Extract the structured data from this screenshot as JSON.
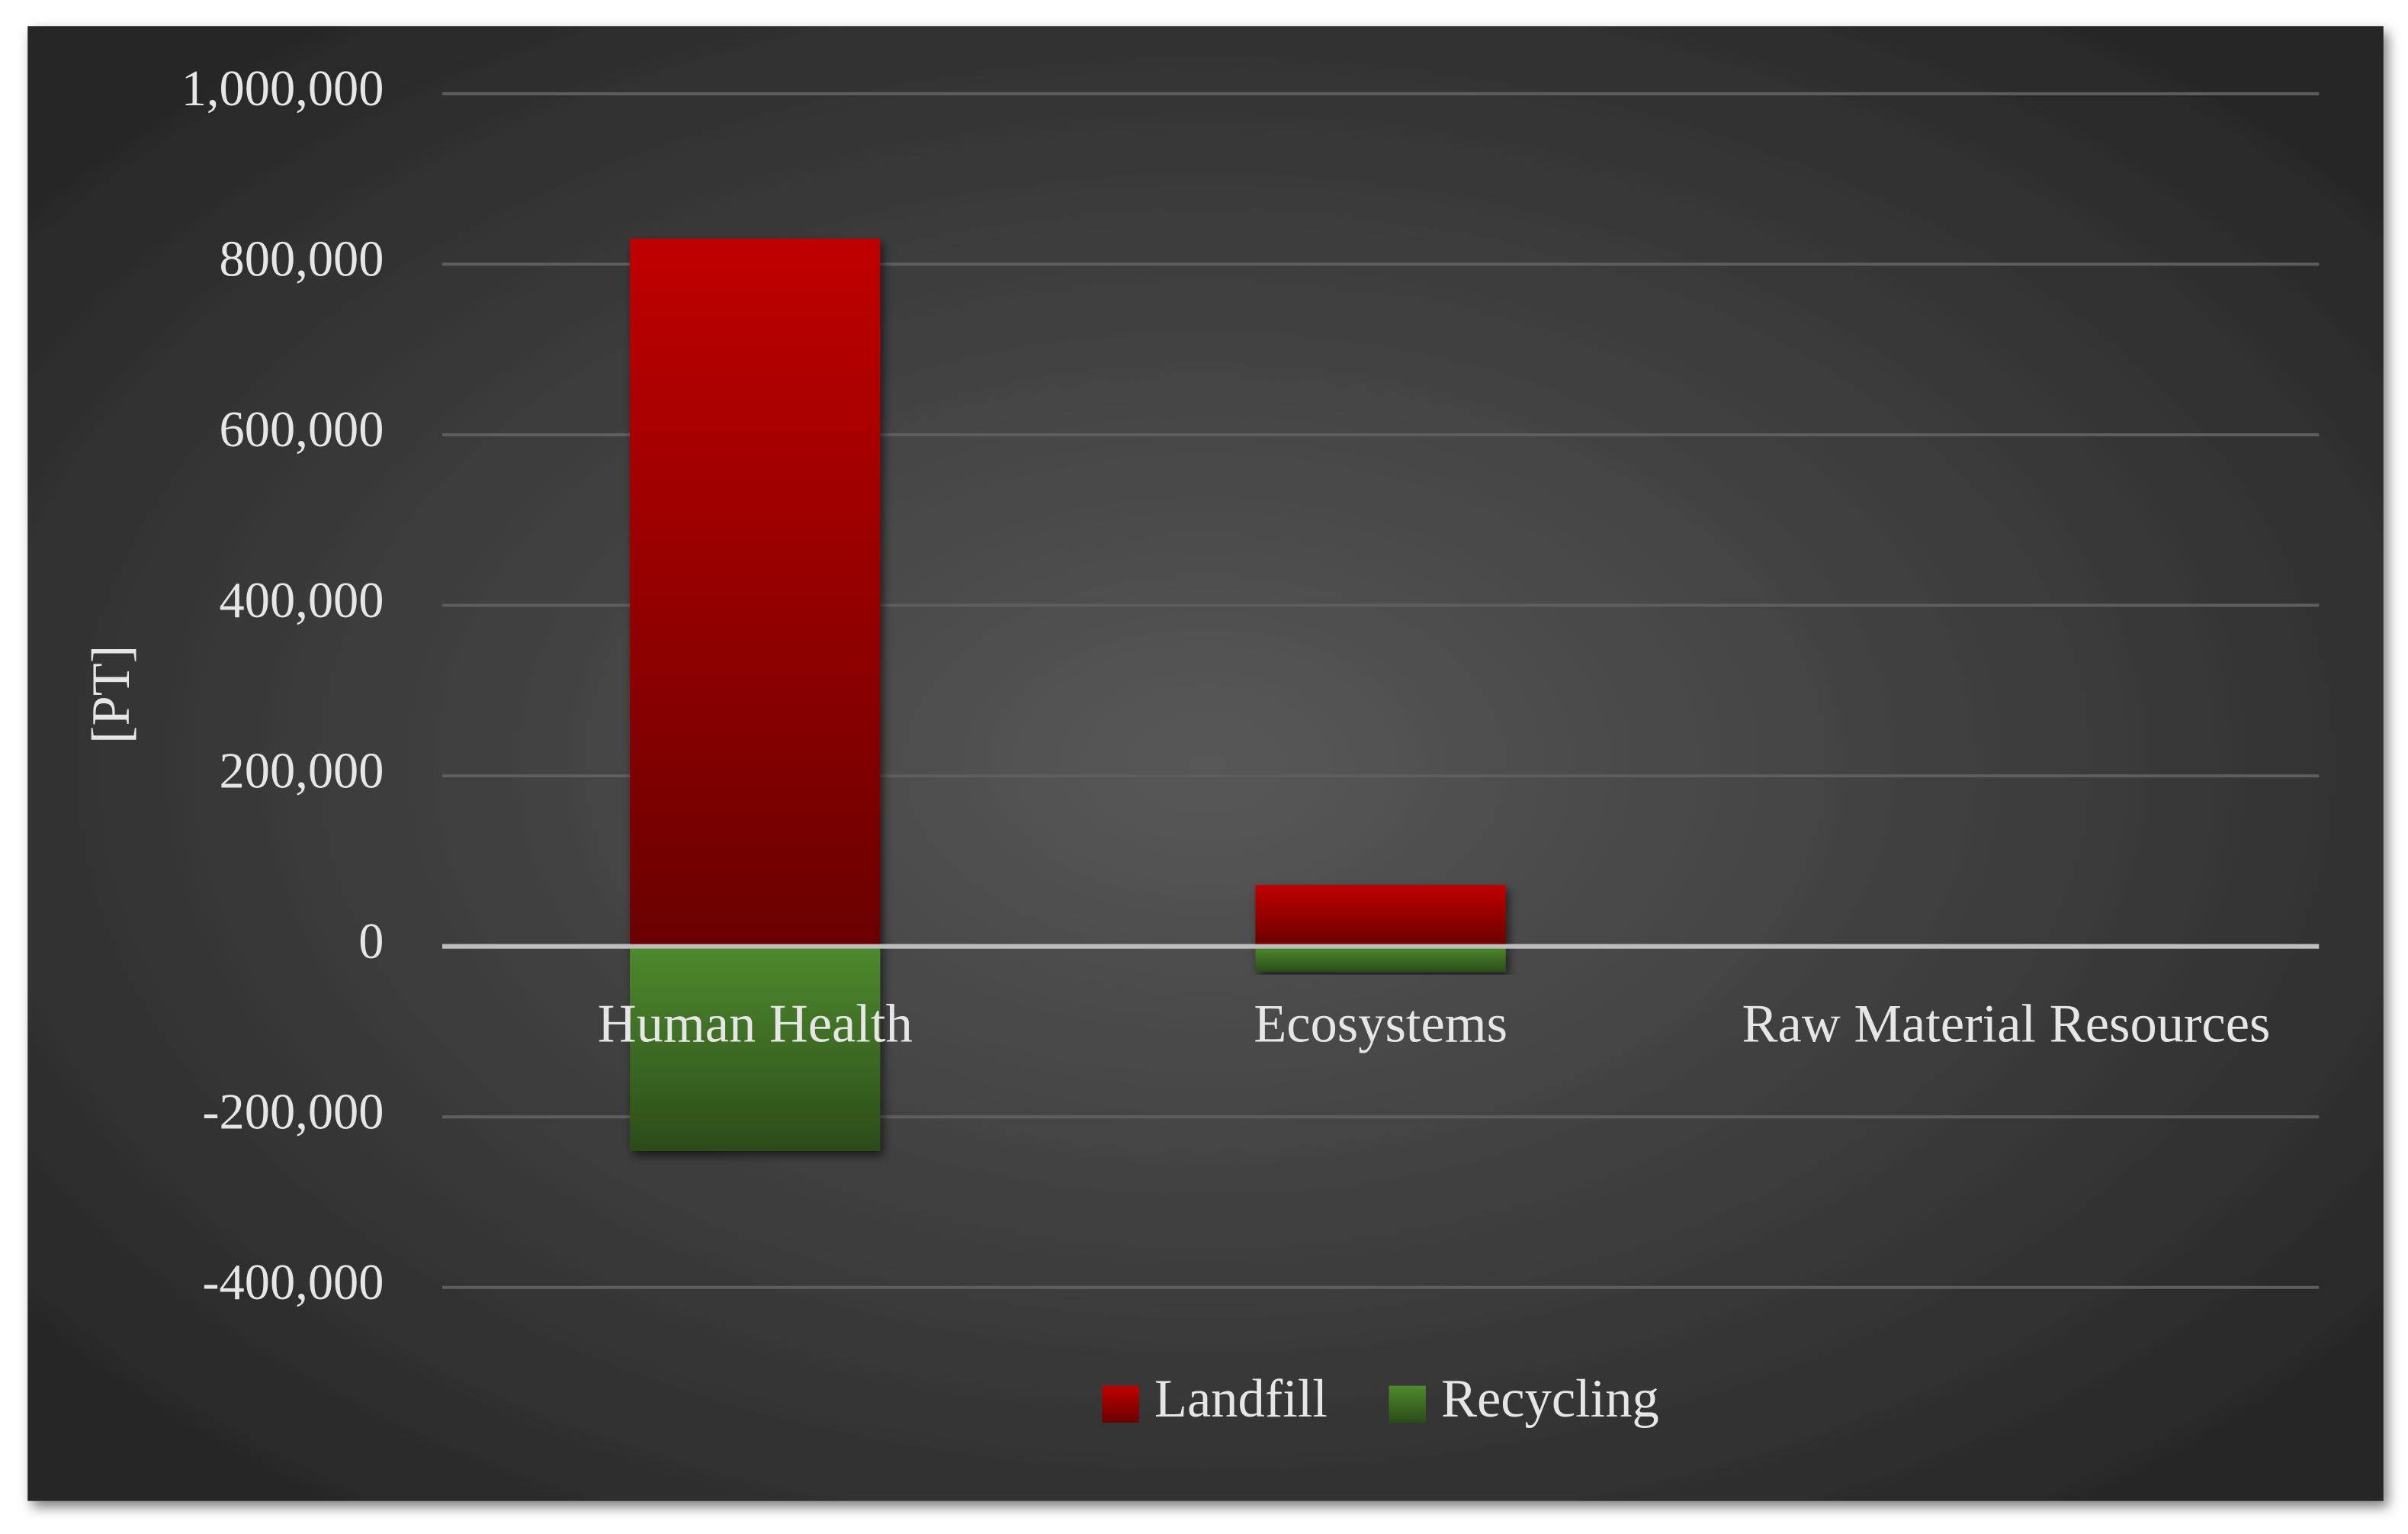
{
  "chart_data": {
    "type": "bar",
    "stacked": true,
    "y_label": "[PT]",
    "categories": [
      "Human Health",
      "Ecosystems",
      "Raw Material Resources"
    ],
    "series": [
      {
        "name": "Landfill",
        "color": "#c00000",
        "values": [
          830000,
          72000,
          0
        ]
      },
      {
        "name": "Recycling",
        "color": "#4e8a2e",
        "values": [
          -240000,
          -30000,
          0
        ]
      }
    ],
    "ylim": [
      -400000,
      1000000
    ],
    "yticks": [
      {
        "value": -400000,
        "label": "-400,000"
      },
      {
        "value": -200000,
        "label": "-200,000"
      },
      0,
      {
        "value": 200000,
        "label": "200,000"
      },
      {
        "value": 400000,
        "label": "400,000"
      },
      {
        "value": 600000,
        "label": "600,000"
      },
      {
        "value": 800000,
        "label": "800,000"
      },
      {
        "value": 1000000,
        "label": "1,000,000"
      }
    ],
    "grid": true,
    "legend": "bottom"
  }
}
